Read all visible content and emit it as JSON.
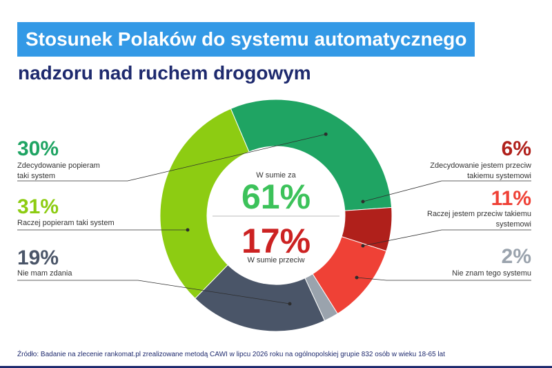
{
  "title_line1": "Stosunek Polaków do systemu automatycznego",
  "title_line2": "nadzoru nad ruchem drogowym",
  "source": "Źródło: Badanie na zlecenie rankomat.pl zrealizowane metodą CAWI w lipcu 2026 roku na ogólnopolskiej grupie 832 osób w wieku 18-65 lat",
  "center": {
    "for_label": "W sumie za",
    "for_value": "61%",
    "against_value": "17%",
    "against_label": "W sumie przeciw"
  },
  "colors": {
    "strongly_support": "#1fa463",
    "rather_support": "#8dcc12",
    "no_opinion": "#4a5568",
    "dont_know": "#9aa3ad",
    "rather_against": "#ef4136",
    "strongly_against": "#b0201b",
    "total_for": "#3cc25a",
    "total_against": "#cc2222"
  },
  "chart_data": {
    "type": "pie",
    "donut": true,
    "title": "Stosunek Polaków do systemu automatycznego nadzoru nad ruchem drogowym",
    "series": [
      {
        "key": "strongly_support",
        "value": 30,
        "value_label": "30%",
        "label": "Zdecydowanie popieram taki system"
      },
      {
        "key": "strongly_against",
        "value": 6,
        "value_label": "6%",
        "label": "Zdecydowanie jestem przeciw takiemu systemowi"
      },
      {
        "key": "rather_against",
        "value": 11,
        "value_label": "11%",
        "label": "Raczej jestem przeciw takiemu systemowi"
      },
      {
        "key": "dont_know",
        "value": 2,
        "value_label": "2%",
        "label": "Nie znam tego systemu"
      },
      {
        "key": "no_opinion",
        "value": 19,
        "value_label": "19%",
        "label": "Nie mam zdania"
      },
      {
        "key": "rather_support",
        "value": 31,
        "value_label": "31%",
        "label": "Raczej popieram taki system"
      }
    ],
    "totals": {
      "for": 61,
      "against": 17
    }
  }
}
